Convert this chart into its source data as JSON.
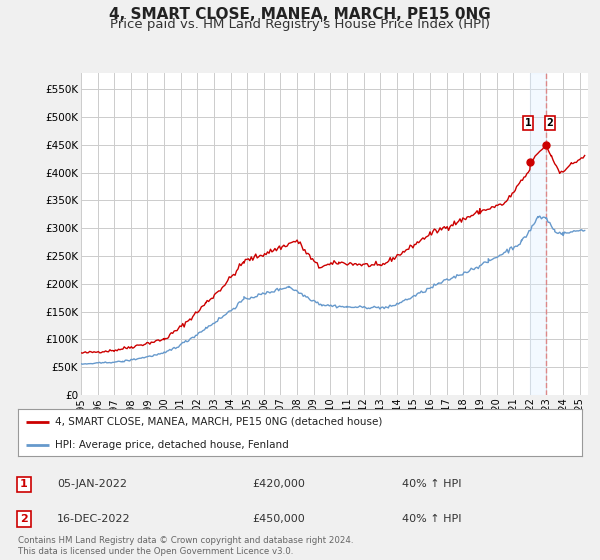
{
  "title": "4, SMART CLOSE, MANEA, MARCH, PE15 0NG",
  "subtitle": "Price paid vs. HM Land Registry's House Price Index (HPI)",
  "title_fontsize": 11,
  "subtitle_fontsize": 9.5,
  "ylabel_ticks": [
    "£0",
    "£50K",
    "£100K",
    "£150K",
    "£200K",
    "£250K",
    "£300K",
    "£350K",
    "£400K",
    "£450K",
    "£500K",
    "£550K"
  ],
  "ytick_vals": [
    0,
    50000,
    100000,
    150000,
    200000,
    250000,
    300000,
    350000,
    400000,
    450000,
    500000,
    550000
  ],
  "ylim": [
    0,
    580000
  ],
  "xlim_start": 1995.0,
  "xlim_end": 2025.5,
  "background_color": "#f0f0f0",
  "plot_bg_color": "#ffffff",
  "grid_color": "#cccccc",
  "legend_label_red": "4, SMART CLOSE, MANEA, MARCH, PE15 0NG (detached house)",
  "legend_label_blue": "HPI: Average price, detached house, Fenland",
  "footer": "Contains HM Land Registry data © Crown copyright and database right 2024.\nThis data is licensed under the Open Government Licence v3.0.",
  "annotation1_box": "1",
  "annotation1_date": "05-JAN-2022",
  "annotation1_price": "£420,000",
  "annotation1_hpi": "40% ↑ HPI",
  "annotation2_box": "2",
  "annotation2_date": "16-DEC-2022",
  "annotation2_price": "£450,000",
  "annotation2_hpi": "40% ↑ HPI",
  "vline_x": 2023.0,
  "shade_x1": 2022.04,
  "shade_x2": 2023.0,
  "marker1_x": 2022.04,
  "marker1_y": 420000,
  "marker2_x": 2022.96,
  "marker2_y": 450000,
  "red_color": "#cc0000",
  "blue_color": "#6699cc",
  "vline_color": "#dd8888",
  "shade_color": "#ddeeff"
}
